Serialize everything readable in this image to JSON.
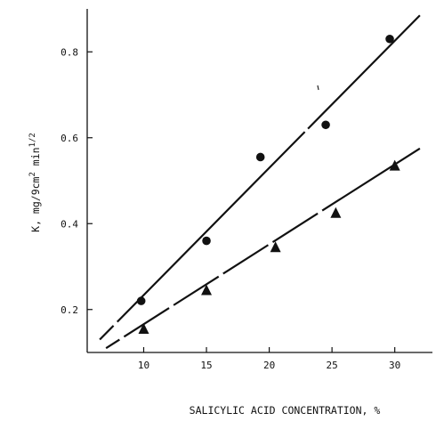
{
  "chart_data": {
    "type": "scatter",
    "xlabel": "SALICYLIC ACID CONCENTRATION, %",
    "ylabel_main": "K, mg/9cm",
    "ylabel_sup1": "2",
    "ylabel_mid": " min",
    "ylabel_sup2": "1/2",
    "xlim": [
      5.5,
      33
    ],
    "ylim": [
      0.1,
      0.9
    ],
    "xticks": [
      {
        "value": 10,
        "label": "10"
      },
      {
        "value": 15,
        "label": "15"
      },
      {
        "value": 20,
        "label": "20"
      },
      {
        "value": 25,
        "label": "25"
      },
      {
        "value": 30,
        "label": "30"
      }
    ],
    "yticks": [
      {
        "value": 0.2,
        "label": "0.2"
      },
      {
        "value": 0.4,
        "label": "0.4"
      },
      {
        "value": 0.6,
        "label": "0.6"
      },
      {
        "value": 0.8,
        "label": "0.8"
      }
    ],
    "series": [
      {
        "marker": "circle",
        "x": [
          9.8,
          15,
          19.3,
          24.5,
          29.6
        ],
        "y": [
          0.22,
          0.36,
          0.555,
          0.63,
          0.83
        ],
        "fit": {
          "x": [
            6.5,
            32
          ],
          "y": [
            0.13,
            0.885
          ]
        }
      },
      {
        "marker": "triangle",
        "x": [
          10,
          15,
          20.5,
          25.3,
          30
        ],
        "y": [
          0.155,
          0.245,
          0.345,
          0.425,
          0.535
        ],
        "fit": {
          "x": [
            7,
            32
          ],
          "y": [
            0.11,
            0.575
          ]
        }
      }
    ],
    "grid": false,
    "legend": "none"
  }
}
